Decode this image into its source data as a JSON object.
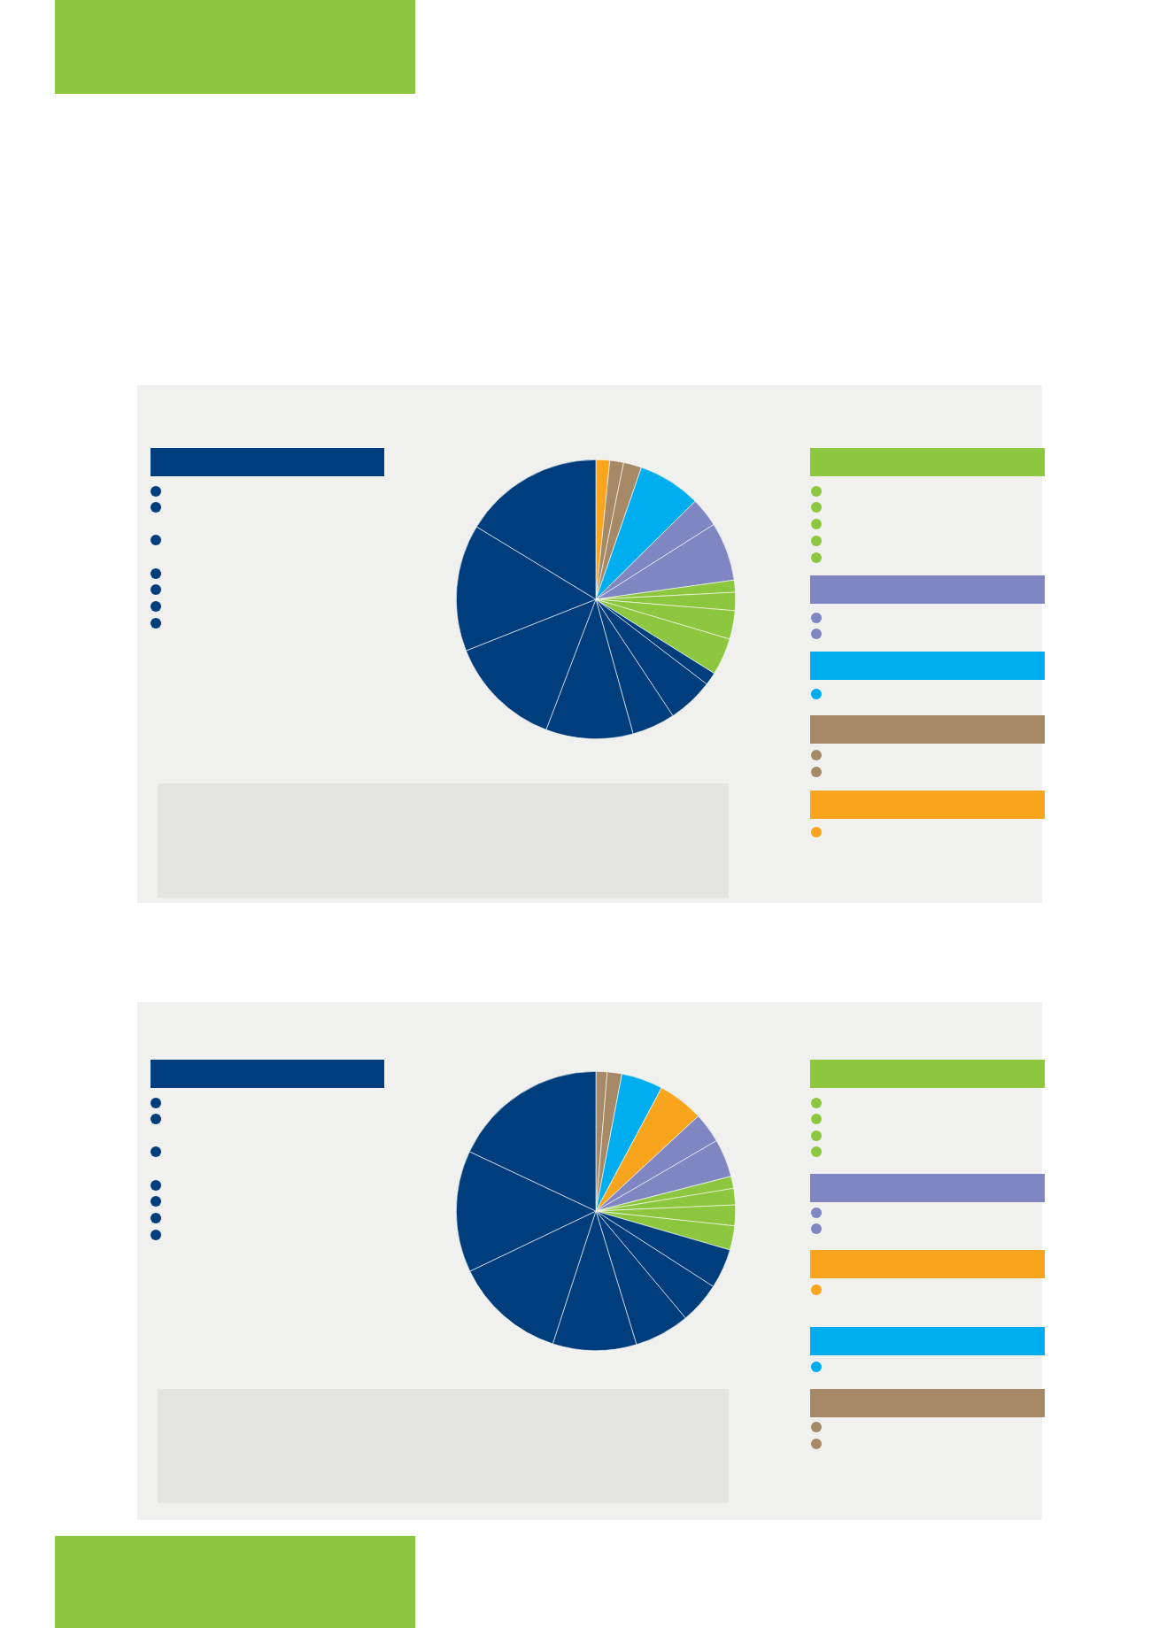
{
  "chart_data": [
    {
      "type": "pie",
      "categories": [
        null,
        null,
        null,
        null,
        null,
        null,
        null,
        null,
        null,
        null,
        null,
        null,
        null,
        null,
        null,
        null,
        null
      ],
      "values": [
        1.6,
        1.6,
        2.1,
        7.3,
        3.4,
        6.8,
        1.4,
        2.1,
        3.3,
        4.3,
        1.5,
        5.3,
        5.0,
        10.1,
        13.2,
        14.7,
        16.3
      ],
      "colors": [
        "#f8a51d",
        "#a68966",
        "#a68966",
        "#00aeef",
        "#7f86c2",
        "#7f86c2",
        "#8dc63f",
        "#8dc63f",
        "#8dc63f",
        "#8dc63f",
        "#003d7c",
        "#003d7c",
        "#003d7c",
        "#003d7c",
        "#003d7c",
        "#003d7c",
        "#003d7c"
      ]
    },
    {
      "type": "pie",
      "categories": [
        null,
        null,
        null,
        null,
        null,
        null,
        null,
        null,
        null,
        null,
        null,
        null,
        null,
        null,
        null,
        null,
        null
      ],
      "values": [
        1.3,
        1.7,
        4.8,
        5.3,
        3.5,
        4.4,
        1.4,
        1.9,
        2.4,
        2.8,
        4.6,
        4.8,
        6.4,
        9.7,
        12.9,
        14.1,
        18.0
      ],
      "colors": [
        "#a68966",
        "#a68966",
        "#00aeef",
        "#f8a51d",
        "#7f86c2",
        "#7f86c2",
        "#8dc63f",
        "#8dc63f",
        "#8dc63f",
        "#8dc63f",
        "#003d7c",
        "#003d7c",
        "#003d7c",
        "#003d7c",
        "#003d7c",
        "#003d7c",
        "#003d7c"
      ]
    }
  ]
}
